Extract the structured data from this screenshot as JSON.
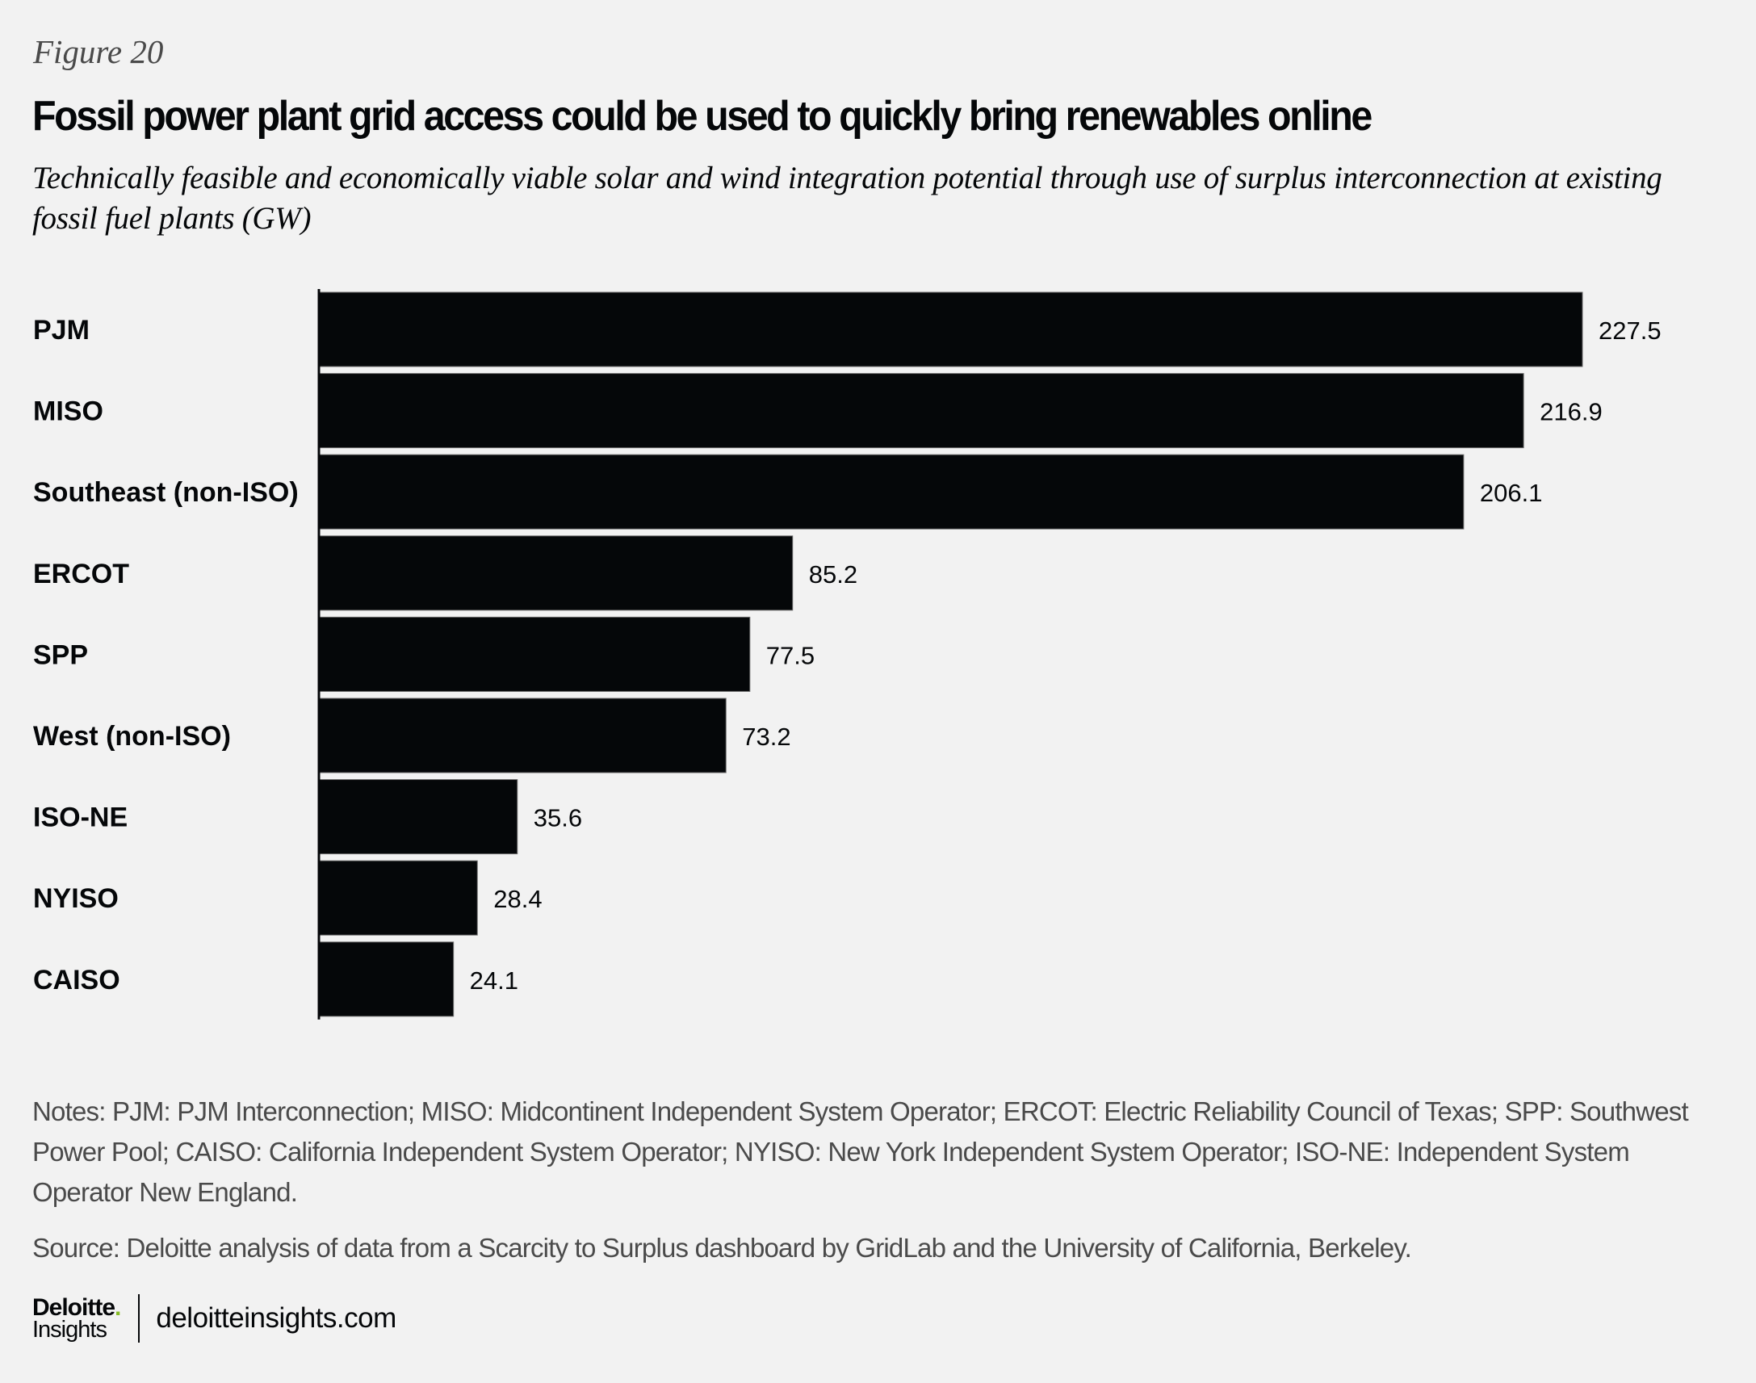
{
  "header": {
    "figure_label": "Figure 20",
    "title": "Fossil power plant grid access could be used to quickly bring renewables online",
    "subtitle": "Technically feasible and economically viable solar and wind integration potential through use of surplus interconnection at existing fossil fuel plants (GW)"
  },
  "chart_data": {
    "type": "bar",
    "orientation": "horizontal",
    "title": "Fossil power plant grid access could be used to quickly bring renewables online",
    "subtitle": "Technically feasible and economically viable solar and wind integration potential through use of surplus interconnection at existing fossil fuel plants (GW)",
    "xlabel": "",
    "ylabel": "",
    "unit": "GW",
    "categories": [
      "PJM",
      "MISO",
      "Southeast (non-ISO)",
      "ERCOT",
      "SPP",
      "West (non-ISO)",
      "ISO-NE",
      "NYISO",
      "CAISO"
    ],
    "values": [
      227.5,
      216.9,
      206.1,
      85.2,
      77.5,
      73.2,
      35.6,
      28.4,
      24.1
    ],
    "value_labels": [
      "227.5",
      "216.9",
      "206.1",
      "85.2",
      "77.5",
      "73.2",
      "35.6",
      "28.4",
      "24.1"
    ],
    "xlim": [
      0,
      227.5
    ],
    "grid": false,
    "legend": "none",
    "bar_color": "#050709"
  },
  "notes": "Notes: PJM: PJM Interconnection; MISO: Midcontinent Independent System Operator; ERCOT: Electric Reliability Council of Texas; SPP: Southwest Power Pool; CAISO: California Independent System Operator; NYISO: New York Independent System Operator; ISO-NE: Independent System Operator New England.",
  "source": "Source: Deloitte analysis of data from a Scarcity to Surplus dashboard by GridLab and the University of California, Berkeley.",
  "footer": {
    "logo_main": "Deloitte",
    "logo_dot": ".",
    "logo_sub": "Insights",
    "website": "deloitteinsights.com",
    "brand_accent": "#86bc25"
  }
}
